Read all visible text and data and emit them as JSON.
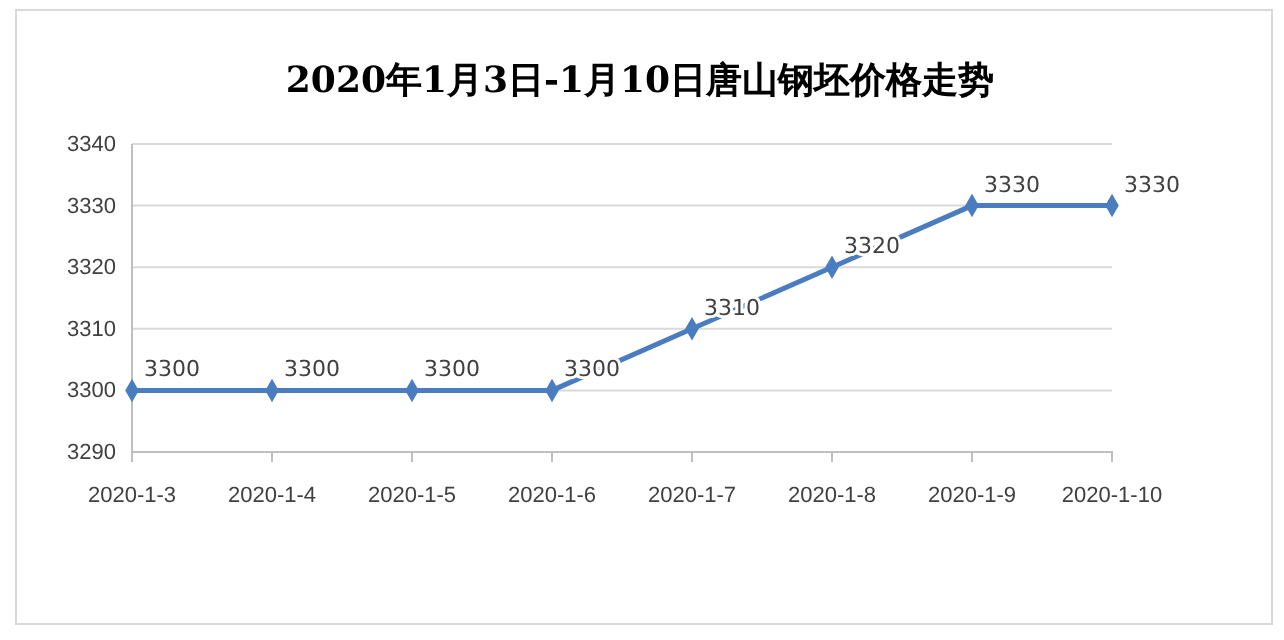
{
  "chart_data": {
    "type": "line",
    "title": "2020年1月3日-1月10日唐山钢坯价格走势",
    "categories": [
      "2020-1-3",
      "2020-1-4",
      "2020-1-5",
      "2020-1-6",
      "2020-1-7",
      "2020-1-8",
      "2020-1-9",
      "2020-1-10"
    ],
    "series": [
      {
        "color": "#4a7cc0",
        "values": [
          3300,
          3300,
          3300,
          3300,
          3310,
          3320,
          3330,
          3330
        ]
      }
    ],
    "ylim": [
      3290,
      3340
    ],
    "yticks": [
      3290,
      3300,
      3310,
      3320,
      3330,
      3340
    ],
    "grid": "y",
    "marker": "diamond",
    "line_style": "solid",
    "data_labels": true
  }
}
